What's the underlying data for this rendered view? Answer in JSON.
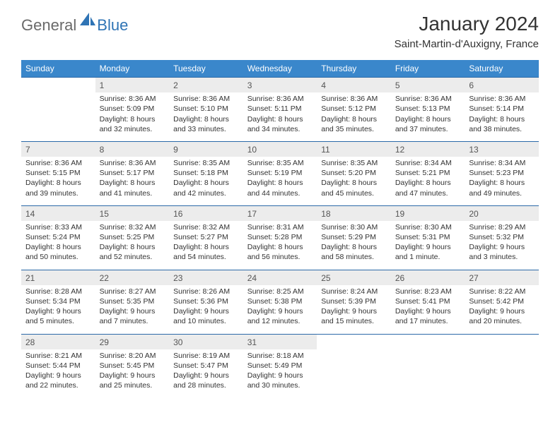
{
  "brand": {
    "general": "General",
    "blue": "Blue"
  },
  "title": "January 2024",
  "location": "Saint-Martin-d'Auxigny, France",
  "colors": {
    "header_bg": "#3a87cb",
    "header_text": "#ffffff",
    "daynum_bg": "#ececec",
    "row_border": "#2c6aa8",
    "logo_gray": "#6a6a6a",
    "logo_blue": "#2f74b5"
  },
  "weekdays": [
    "Sunday",
    "Monday",
    "Tuesday",
    "Wednesday",
    "Thursday",
    "Friday",
    "Saturday"
  ],
  "weeks": [
    {
      "nums": [
        "",
        "1",
        "2",
        "3",
        "4",
        "5",
        "6"
      ],
      "cells": [
        null,
        {
          "sr": "Sunrise: 8:36 AM",
          "ss": "Sunset: 5:09 PM",
          "d1": "Daylight: 8 hours",
          "d2": "and 32 minutes."
        },
        {
          "sr": "Sunrise: 8:36 AM",
          "ss": "Sunset: 5:10 PM",
          "d1": "Daylight: 8 hours",
          "d2": "and 33 minutes."
        },
        {
          "sr": "Sunrise: 8:36 AM",
          "ss": "Sunset: 5:11 PM",
          "d1": "Daylight: 8 hours",
          "d2": "and 34 minutes."
        },
        {
          "sr": "Sunrise: 8:36 AM",
          "ss": "Sunset: 5:12 PM",
          "d1": "Daylight: 8 hours",
          "d2": "and 35 minutes."
        },
        {
          "sr": "Sunrise: 8:36 AM",
          "ss": "Sunset: 5:13 PM",
          "d1": "Daylight: 8 hours",
          "d2": "and 37 minutes."
        },
        {
          "sr": "Sunrise: 8:36 AM",
          "ss": "Sunset: 5:14 PM",
          "d1": "Daylight: 8 hours",
          "d2": "and 38 minutes."
        }
      ]
    },
    {
      "nums": [
        "7",
        "8",
        "9",
        "10",
        "11",
        "12",
        "13"
      ],
      "cells": [
        {
          "sr": "Sunrise: 8:36 AM",
          "ss": "Sunset: 5:15 PM",
          "d1": "Daylight: 8 hours",
          "d2": "and 39 minutes."
        },
        {
          "sr": "Sunrise: 8:36 AM",
          "ss": "Sunset: 5:17 PM",
          "d1": "Daylight: 8 hours",
          "d2": "and 41 minutes."
        },
        {
          "sr": "Sunrise: 8:35 AM",
          "ss": "Sunset: 5:18 PM",
          "d1": "Daylight: 8 hours",
          "d2": "and 42 minutes."
        },
        {
          "sr": "Sunrise: 8:35 AM",
          "ss": "Sunset: 5:19 PM",
          "d1": "Daylight: 8 hours",
          "d2": "and 44 minutes."
        },
        {
          "sr": "Sunrise: 8:35 AM",
          "ss": "Sunset: 5:20 PM",
          "d1": "Daylight: 8 hours",
          "d2": "and 45 minutes."
        },
        {
          "sr": "Sunrise: 8:34 AM",
          "ss": "Sunset: 5:21 PM",
          "d1": "Daylight: 8 hours",
          "d2": "and 47 minutes."
        },
        {
          "sr": "Sunrise: 8:34 AM",
          "ss": "Sunset: 5:23 PM",
          "d1": "Daylight: 8 hours",
          "d2": "and 49 minutes."
        }
      ]
    },
    {
      "nums": [
        "14",
        "15",
        "16",
        "17",
        "18",
        "19",
        "20"
      ],
      "cells": [
        {
          "sr": "Sunrise: 8:33 AM",
          "ss": "Sunset: 5:24 PM",
          "d1": "Daylight: 8 hours",
          "d2": "and 50 minutes."
        },
        {
          "sr": "Sunrise: 8:32 AM",
          "ss": "Sunset: 5:25 PM",
          "d1": "Daylight: 8 hours",
          "d2": "and 52 minutes."
        },
        {
          "sr": "Sunrise: 8:32 AM",
          "ss": "Sunset: 5:27 PM",
          "d1": "Daylight: 8 hours",
          "d2": "and 54 minutes."
        },
        {
          "sr": "Sunrise: 8:31 AM",
          "ss": "Sunset: 5:28 PM",
          "d1": "Daylight: 8 hours",
          "d2": "and 56 minutes."
        },
        {
          "sr": "Sunrise: 8:30 AM",
          "ss": "Sunset: 5:29 PM",
          "d1": "Daylight: 8 hours",
          "d2": "and 58 minutes."
        },
        {
          "sr": "Sunrise: 8:30 AM",
          "ss": "Sunset: 5:31 PM",
          "d1": "Daylight: 9 hours",
          "d2": "and 1 minute."
        },
        {
          "sr": "Sunrise: 8:29 AM",
          "ss": "Sunset: 5:32 PM",
          "d1": "Daylight: 9 hours",
          "d2": "and 3 minutes."
        }
      ]
    },
    {
      "nums": [
        "21",
        "22",
        "23",
        "24",
        "25",
        "26",
        "27"
      ],
      "cells": [
        {
          "sr": "Sunrise: 8:28 AM",
          "ss": "Sunset: 5:34 PM",
          "d1": "Daylight: 9 hours",
          "d2": "and 5 minutes."
        },
        {
          "sr": "Sunrise: 8:27 AM",
          "ss": "Sunset: 5:35 PM",
          "d1": "Daylight: 9 hours",
          "d2": "and 7 minutes."
        },
        {
          "sr": "Sunrise: 8:26 AM",
          "ss": "Sunset: 5:36 PM",
          "d1": "Daylight: 9 hours",
          "d2": "and 10 minutes."
        },
        {
          "sr": "Sunrise: 8:25 AM",
          "ss": "Sunset: 5:38 PM",
          "d1": "Daylight: 9 hours",
          "d2": "and 12 minutes."
        },
        {
          "sr": "Sunrise: 8:24 AM",
          "ss": "Sunset: 5:39 PM",
          "d1": "Daylight: 9 hours",
          "d2": "and 15 minutes."
        },
        {
          "sr": "Sunrise: 8:23 AM",
          "ss": "Sunset: 5:41 PM",
          "d1": "Daylight: 9 hours",
          "d2": "and 17 minutes."
        },
        {
          "sr": "Sunrise: 8:22 AM",
          "ss": "Sunset: 5:42 PM",
          "d1": "Daylight: 9 hours",
          "d2": "and 20 minutes."
        }
      ]
    },
    {
      "nums": [
        "28",
        "29",
        "30",
        "31",
        "",
        "",
        ""
      ],
      "cells": [
        {
          "sr": "Sunrise: 8:21 AM",
          "ss": "Sunset: 5:44 PM",
          "d1": "Daylight: 9 hours",
          "d2": "and 22 minutes."
        },
        {
          "sr": "Sunrise: 8:20 AM",
          "ss": "Sunset: 5:45 PM",
          "d1": "Daylight: 9 hours",
          "d2": "and 25 minutes."
        },
        {
          "sr": "Sunrise: 8:19 AM",
          "ss": "Sunset: 5:47 PM",
          "d1": "Daylight: 9 hours",
          "d2": "and 28 minutes."
        },
        {
          "sr": "Sunrise: 8:18 AM",
          "ss": "Sunset: 5:49 PM",
          "d1": "Daylight: 9 hours",
          "d2": "and 30 minutes."
        },
        null,
        null,
        null
      ]
    }
  ]
}
